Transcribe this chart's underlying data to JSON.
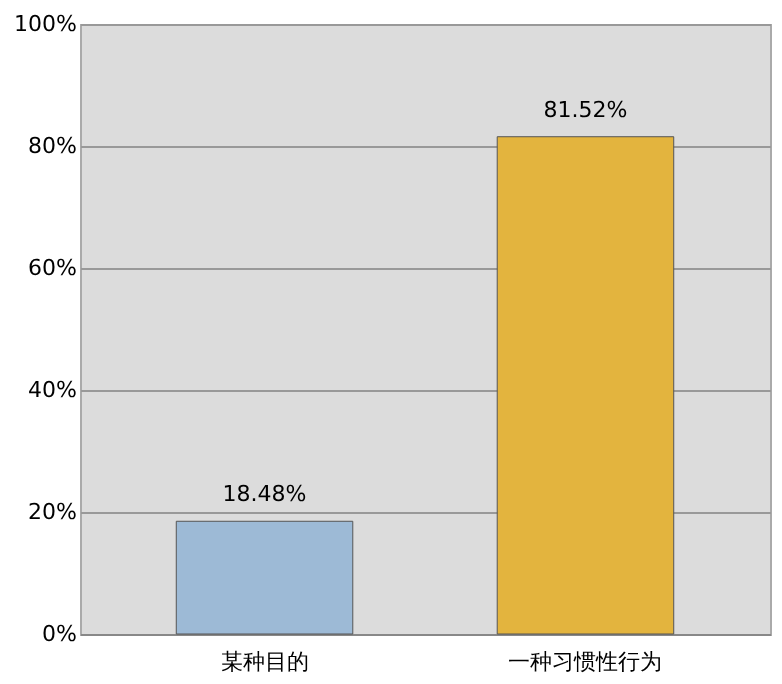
{
  "chart_data": {
    "type": "bar",
    "categories": [
      "某种目的",
      "一种习惯性行为"
    ],
    "values": [
      18.48,
      81.52
    ],
    "colors": [
      "#9dbad6",
      "#e3b43e"
    ],
    "ylim": [
      0,
      100
    ],
    "yticks": [
      {
        "value": 0,
        "label": "0%"
      },
      {
        "value": 20,
        "label": "20%"
      },
      {
        "value": 40,
        "label": "40%"
      },
      {
        "value": 60,
        "label": "60%"
      },
      {
        "value": 80,
        "label": "80%"
      },
      {
        "value": 100,
        "label": "100%"
      }
    ],
    "value_labels": [
      "18.48%",
      "81.52%"
    ],
    "grid": "y"
  }
}
